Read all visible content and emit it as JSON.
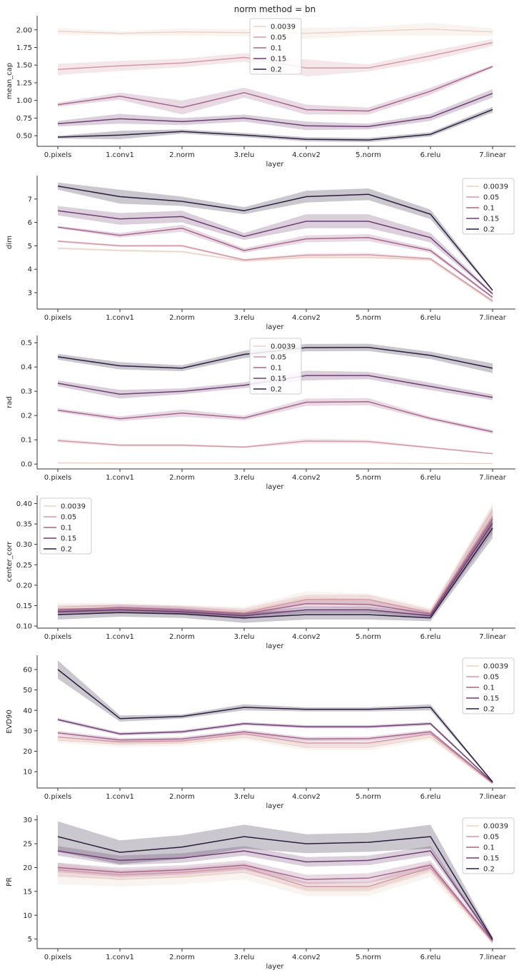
{
  "figure": {
    "suptitle": "norm method = bn"
  },
  "colors": {
    "0.0039": "#ecd3c7",
    "0.05": "#d29aa8",
    "0.1": "#a5668f",
    "0.15": "#6f3f74",
    "0.2": "#2d1e3e"
  },
  "chart_data": [
    {
      "type": "line",
      "title": "norm method = bn",
      "xlabel": "layer",
      "ylabel": "mean_cap",
      "categories": [
        "0.pixels",
        "1.conv1",
        "2.norm",
        "3.relu",
        "4.conv2",
        "5.norm",
        "6.relu",
        "7.linear"
      ],
      "ylim": [
        0.35,
        2.2
      ],
      "yticks": [
        0.5,
        0.75,
        1.0,
        1.25,
        1.5,
        1.75,
        2.0
      ],
      "yticklabels": [
        "0.50",
        "0.75",
        "1.00",
        "1.25",
        "1.50",
        "1.75",
        "2.00"
      ],
      "legend": {
        "position": "top-center",
        "entries": [
          "0.0039",
          "0.05",
          "0.1",
          "0.15",
          "0.2"
        ]
      },
      "series": [
        {
          "name": "0.0039",
          "values": [
            1.98,
            1.95,
            1.97,
            1.96,
            1.95,
            1.98,
            2.01,
            1.97
          ],
          "band": [
            0.05,
            0.03,
            0.05,
            0.05,
            0.08,
            0.06,
            0.09,
            0.05
          ]
        },
        {
          "name": "0.05",
          "values": [
            1.44,
            1.49,
            1.53,
            1.61,
            1.46,
            1.46,
            1.63,
            1.82
          ],
          "band": [
            0.08,
            0.07,
            0.06,
            0.06,
            0.12,
            0.05,
            0.07,
            0.05
          ]
        },
        {
          "name": "0.1",
          "values": [
            0.94,
            1.06,
            0.9,
            1.11,
            0.87,
            0.85,
            1.13,
            1.48
          ],
          "band": [
            0.03,
            0.05,
            0.1,
            0.07,
            0.07,
            0.05,
            0.05,
            0.02
          ]
        },
        {
          "name": "0.15",
          "values": [
            0.67,
            0.74,
            0.7,
            0.75,
            0.64,
            0.63,
            0.76,
            1.1
          ],
          "band": [
            0.04,
            0.07,
            0.05,
            0.05,
            0.06,
            0.04,
            0.05,
            0.06
          ]
        },
        {
          "name": "0.2",
          "values": [
            0.48,
            0.51,
            0.56,
            0.51,
            0.45,
            0.44,
            0.52,
            0.87
          ],
          "band": [
            0.02,
            0.06,
            0.03,
            0.03,
            0.03,
            0.03,
            0.03,
            0.04
          ]
        }
      ]
    },
    {
      "type": "line",
      "xlabel": "layer",
      "ylabel": "dim",
      "categories": [
        "0.pixels",
        "1.conv1",
        "2.norm",
        "3.relu",
        "4.conv2",
        "5.norm",
        "6.relu",
        "7.linear"
      ],
      "ylim": [
        2.3,
        8.0
      ],
      "yticks": [
        3,
        4,
        5,
        6,
        7
      ],
      "yticklabels": [
        "3",
        "4",
        "5",
        "6",
        "7"
      ],
      "legend": {
        "position": "top-right",
        "entries": [
          "0.0039",
          "0.05",
          "0.1",
          "0.15",
          "0.2"
        ]
      },
      "series": [
        {
          "name": "0.0039",
          "values": [
            4.9,
            4.8,
            4.75,
            4.35,
            4.5,
            4.5,
            4.4,
            2.6
          ],
          "band": [
            0.05,
            0.05,
            0.05,
            0.05,
            0.05,
            0.05,
            0.05,
            0.05
          ]
        },
        {
          "name": "0.05",
          "values": [
            5.2,
            5.0,
            5.0,
            4.4,
            4.6,
            4.62,
            4.45,
            2.65
          ],
          "band": [
            0.05,
            0.05,
            0.05,
            0.05,
            0.08,
            0.08,
            0.05,
            0.05
          ]
        },
        {
          "name": "0.1",
          "values": [
            5.8,
            5.45,
            5.75,
            4.8,
            5.3,
            5.35,
            4.8,
            2.8
          ],
          "band": [
            0.05,
            0.1,
            0.15,
            0.1,
            0.15,
            0.15,
            0.1,
            0.05
          ]
        },
        {
          "name": "0.15",
          "values": [
            6.5,
            6.15,
            6.25,
            5.4,
            6.05,
            6.05,
            5.35,
            2.95
          ],
          "band": [
            0.2,
            0.25,
            0.25,
            0.15,
            0.3,
            0.3,
            0.2,
            0.05
          ]
        },
        {
          "name": "0.2",
          "values": [
            7.55,
            7.1,
            6.9,
            6.5,
            7.1,
            7.2,
            6.35,
            3.1
          ],
          "band": [
            0.15,
            0.3,
            0.2,
            0.15,
            0.25,
            0.25,
            0.2,
            0.05
          ]
        }
      ]
    },
    {
      "type": "line",
      "xlabel": "layer",
      "ylabel": "rad",
      "categories": [
        "0.pixels",
        "1.conv1",
        "2.norm",
        "3.relu",
        "4.conv2",
        "5.norm",
        "6.relu",
        "7.linear"
      ],
      "ylim": [
        -0.02,
        0.53
      ],
      "yticks": [
        0.0,
        0.1,
        0.2,
        0.3,
        0.4,
        0.5
      ],
      "yticklabels": [
        "0.0",
        "0.1",
        "0.2",
        "0.3",
        "0.4",
        "0.5"
      ],
      "legend": {
        "position": "top-center",
        "entries": [
          "0.0039",
          "0.05",
          "0.1",
          "0.15",
          "0.2"
        ]
      },
      "series": [
        {
          "name": "0.0039",
          "values": [
            0.005,
            0.004,
            0.004,
            0.004,
            0.004,
            0.004,
            0.003,
            0.002
          ],
          "band": [
            0.001,
            0.001,
            0.001,
            0.001,
            0.001,
            0.001,
            0.001,
            0.001
          ]
        },
        {
          "name": "0.05",
          "values": [
            0.097,
            0.078,
            0.078,
            0.07,
            0.095,
            0.093,
            0.068,
            0.043
          ],
          "band": [
            0.008,
            0.005,
            0.005,
            0.004,
            0.01,
            0.008,
            0.004,
            0.003
          ]
        },
        {
          "name": "0.1",
          "values": [
            0.222,
            0.187,
            0.21,
            0.19,
            0.255,
            0.257,
            0.188,
            0.133
          ],
          "band": [
            0.008,
            0.01,
            0.015,
            0.01,
            0.015,
            0.015,
            0.008,
            0.008
          ]
        },
        {
          "name": "0.15",
          "values": [
            0.333,
            0.288,
            0.3,
            0.325,
            0.365,
            0.365,
            0.32,
            0.275
          ],
          "band": [
            0.012,
            0.018,
            0.012,
            0.012,
            0.02,
            0.015,
            0.015,
            0.012
          ]
        },
        {
          "name": "0.2",
          "values": [
            0.442,
            0.405,
            0.395,
            0.452,
            0.48,
            0.481,
            0.448,
            0.395
          ],
          "band": [
            0.012,
            0.015,
            0.012,
            0.015,
            0.015,
            0.015,
            0.015,
            0.02
          ]
        }
      ]
    },
    {
      "type": "line",
      "xlabel": "layer",
      "ylabel": "center_corr",
      "categories": [
        "0.pixels",
        "1.conv1",
        "2.norm",
        "3.relu",
        "4.conv2",
        "5.norm",
        "6.relu",
        "7.linear"
      ],
      "ylim": [
        0.095,
        0.42
      ],
      "yticks": [
        0.1,
        0.15,
        0.2,
        0.25,
        0.3,
        0.35,
        0.4
      ],
      "yticklabels": [
        "0.10",
        "0.15",
        "0.20",
        "0.25",
        "0.30",
        "0.35",
        "0.40"
      ],
      "legend": {
        "position": "top-left",
        "entries": [
          "0.0039",
          "0.05",
          "0.1",
          "0.15",
          "0.2"
        ]
      },
      "series": [
        {
          "name": "0.0039",
          "values": [
            0.145,
            0.145,
            0.14,
            0.135,
            0.17,
            0.165,
            0.135,
            0.375
          ],
          "band": [
            0.012,
            0.012,
            0.012,
            0.012,
            0.015,
            0.015,
            0.01,
            0.025
          ]
        },
        {
          "name": "0.05",
          "values": [
            0.142,
            0.143,
            0.14,
            0.133,
            0.165,
            0.165,
            0.133,
            0.37
          ],
          "band": [
            0.01,
            0.01,
            0.01,
            0.01,
            0.012,
            0.012,
            0.008,
            0.025
          ]
        },
        {
          "name": "0.1",
          "values": [
            0.14,
            0.145,
            0.14,
            0.13,
            0.155,
            0.153,
            0.13,
            0.362
          ],
          "band": [
            0.008,
            0.008,
            0.008,
            0.008,
            0.01,
            0.01,
            0.008,
            0.025
          ]
        },
        {
          "name": "0.15",
          "values": [
            0.135,
            0.14,
            0.135,
            0.125,
            0.14,
            0.14,
            0.125,
            0.352
          ],
          "band": [
            0.008,
            0.008,
            0.008,
            0.008,
            0.008,
            0.008,
            0.006,
            0.025
          ]
        },
        {
          "name": "0.2",
          "values": [
            0.128,
            0.133,
            0.13,
            0.12,
            0.128,
            0.128,
            0.12,
            0.34
          ],
          "band": [
            0.012,
            0.01,
            0.01,
            0.012,
            0.012,
            0.012,
            0.008,
            0.025
          ]
        }
      ]
    },
    {
      "type": "line",
      "xlabel": "layer",
      "ylabel": "EVD90",
      "categories": [
        "0.pixels",
        "1.conv1",
        "2.norm",
        "3.relu",
        "4.conv2",
        "5.norm",
        "6.relu",
        "7.linear"
      ],
      "ylim": [
        2,
        67
      ],
      "yticks": [
        10,
        20,
        30,
        40,
        50,
        60
      ],
      "yticklabels": [
        "10",
        "20",
        "30",
        "40",
        "50",
        "60"
      ],
      "legend": {
        "position": "top-right",
        "entries": [
          "0.0039",
          "0.05",
          "0.1",
          "0.15",
          "0.2"
        ]
      },
      "series": [
        {
          "name": "0.0039",
          "values": [
            25.5,
            23.5,
            24.0,
            27.0,
            22.0,
            22.0,
            27.0,
            4.0
          ],
          "band": [
            1.5,
            1.5,
            1.5,
            1.5,
            1.5,
            1.5,
            1.5,
            0.3
          ]
        },
        {
          "name": "0.05",
          "values": [
            27.0,
            24.5,
            25.0,
            28.5,
            24.0,
            24.0,
            28.5,
            4.3
          ],
          "band": [
            1.0,
            1.0,
            1.0,
            1.0,
            1.5,
            1.5,
            1.0,
            0.3
          ]
        },
        {
          "name": "0.1",
          "values": [
            29.0,
            25.5,
            26.0,
            29.5,
            26.0,
            26.2,
            29.5,
            4.6
          ],
          "band": [
            1.0,
            1.0,
            1.0,
            1.0,
            1.0,
            1.0,
            1.0,
            0.3
          ]
        },
        {
          "name": "0.15",
          "values": [
            35.5,
            28.5,
            29.5,
            33.5,
            32.0,
            32.0,
            33.5,
            4.8
          ],
          "band": [
            0.8,
            0.8,
            0.8,
            0.8,
            0.8,
            0.8,
            0.8,
            0.3
          ]
        },
        {
          "name": "0.2",
          "values": [
            60.0,
            36.0,
            37.0,
            41.5,
            40.5,
            40.5,
            41.5,
            5.0
          ],
          "band": [
            4.5,
            1.5,
            1.0,
            1.5,
            1.0,
            1.0,
            1.5,
            0.3
          ]
        }
      ]
    },
    {
      "type": "line",
      "xlabel": "layer",
      "ylabel": "PR",
      "categories": [
        "0.pixels",
        "1.conv1",
        "2.norm",
        "3.relu",
        "4.conv2",
        "5.norm",
        "6.relu",
        "7.linear"
      ],
      "ylim": [
        3,
        31
      ],
      "yticks": [
        5,
        10,
        15,
        20,
        25,
        30
      ],
      "yticklabels": [
        "5",
        "10",
        "15",
        "20",
        "25",
        "30"
      ],
      "legend": {
        "position": "top-right",
        "entries": [
          "0.0039",
          "0.05",
          "0.1",
          "0.15",
          "0.2"
        ]
      },
      "series": [
        {
          "name": "0.0039",
          "values": [
            18.5,
            17.5,
            18.0,
            19.0,
            15.5,
            15.5,
            19.5,
            4.2
          ],
          "band": [
            2.0,
            1.5,
            1.5,
            1.5,
            1.5,
            1.5,
            1.5,
            0.4
          ]
        },
        {
          "name": "0.05",
          "values": [
            19.5,
            18.5,
            19.0,
            20.0,
            16.0,
            16.0,
            20.0,
            4.4
          ],
          "band": [
            1.5,
            1.0,
            1.0,
            1.0,
            1.0,
            1.0,
            1.0,
            0.4
          ]
        },
        {
          "name": "0.1",
          "values": [
            20.0,
            19.0,
            19.5,
            20.5,
            17.5,
            17.8,
            20.5,
            4.6
          ],
          "band": [
            1.0,
            1.0,
            1.0,
            1.0,
            1.0,
            1.0,
            1.0,
            0.3
          ]
        },
        {
          "name": "0.15",
          "values": [
            23.5,
            21.5,
            22.0,
            23.5,
            21.2,
            21.5,
            23.5,
            4.8
          ],
          "band": [
            1.0,
            1.0,
            1.0,
            1.0,
            1.0,
            1.0,
            1.0,
            0.3
          ]
        },
        {
          "name": "0.2",
          "values": [
            26.5,
            23.2,
            24.3,
            26.5,
            25.0,
            25.3,
            26.5,
            5.0
          ],
          "band": [
            3.2,
            2.5,
            2.5,
            2.5,
            2.0,
            2.0,
            2.5,
            0.5
          ]
        }
      ]
    }
  ]
}
